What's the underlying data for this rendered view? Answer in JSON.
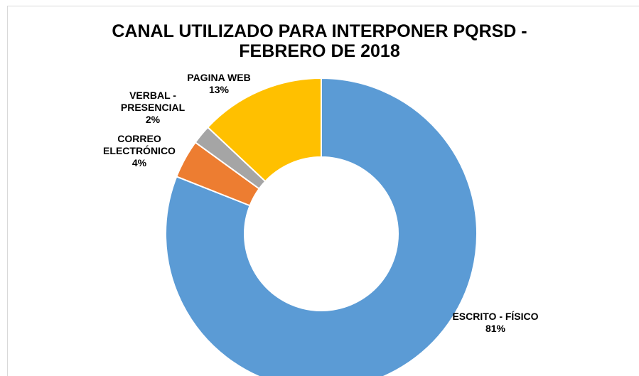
{
  "chart_data": {
    "type": "donut",
    "title": "CANAL UTILIZADO PARA INTERPONER PQRSD -\nFEBRERO DE 2018",
    "categories": [
      "ESCRITO - FÍSICO",
      "CORREO\nELECTRÓNICO",
      "VERBAL -\nPRESENCIAL",
      "PAGINA WEB"
    ],
    "values": [
      81,
      4,
      2,
      13
    ],
    "value_labels": [
      "81%",
      "4%",
      "2%",
      "13%"
    ],
    "colors": [
      "#5b9bd5",
      "#ed7d31",
      "#a5a5a5",
      "#ffc000"
    ]
  }
}
